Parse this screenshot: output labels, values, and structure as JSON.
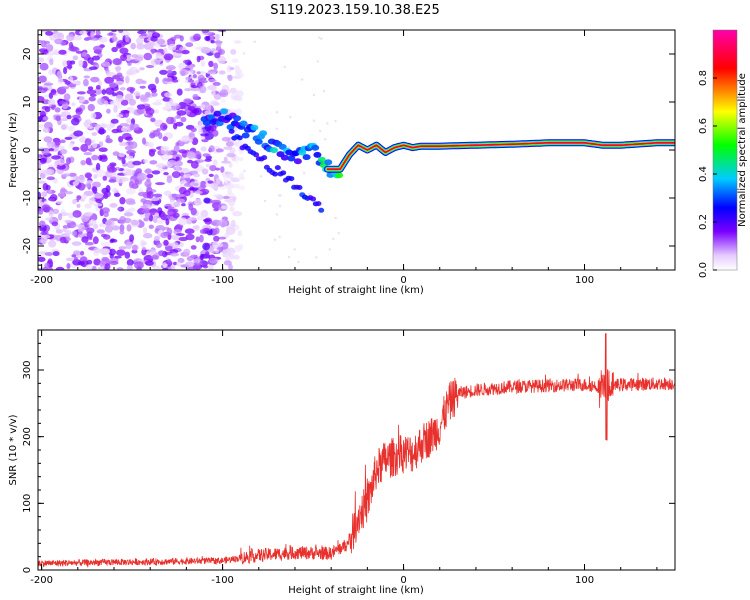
{
  "title": "S119.2023.159.10.38.E25",
  "chart_data": [
    {
      "type": "heatmap",
      "xlabel": "Height of straight line (km)",
      "ylabel": "Frequency (Hz)",
      "xlim": [
        -202,
        150
      ],
      "ylim": [
        -25,
        25
      ],
      "xticks": [
        -200,
        -100,
        0,
        100
      ],
      "yticks": [
        -20,
        -10,
        0,
        10,
        20
      ],
      "colorbar": {
        "label": "Normalized spectral amplitude",
        "range": [
          0,
          1
        ],
        "ticks": [
          "0.0",
          "0.2",
          "0.4",
          "0.6",
          "0.8"
        ],
        "colormap": [
          "#ffffff",
          "#e6ccff",
          "#7b00ff",
          "#0000ff",
          "#00ccff",
          "#00ff00",
          "#ffff00",
          "#ff0000",
          "#ff00aa"
        ]
      },
      "ridge": {
        "description_points_x": [
          -100,
          -90,
          -80,
          -70,
          -60,
          -50,
          -42,
          -35,
          -30,
          -25,
          -20,
          -15,
          -10,
          -5,
          0,
          5,
          10,
          20,
          40,
          60,
          80,
          100,
          110,
          120,
          140,
          150
        ],
        "frequency_hz": [
          7,
          5,
          3,
          0,
          -2,
          0,
          -4,
          -4,
          -1,
          1,
          0,
          1,
          -0.5,
          0.5,
          1,
          0.5,
          0.8,
          0.8,
          1,
          1.2,
          1.5,
          1.5,
          1,
          1,
          1.5,
          1.5
        ],
        "amplitude": [
          0.3,
          0.3,
          0.35,
          0.35,
          0.3,
          0.4,
          0.45,
          0.45,
          0.4,
          0.45,
          0.5,
          0.6,
          0.7,
          0.6,
          0.75,
          0.8,
          0.85,
          0.85,
          0.85,
          0.85,
          0.85,
          0.85,
          0.7,
          0.85,
          0.85,
          0.85
        ]
      },
      "noise_region_x": [
        -202,
        -95
      ]
    },
    {
      "type": "line",
      "xlabel": "Height of straight line (km)",
      "ylabel": "SNR (10 * v/v)",
      "xlim": [
        -202,
        150
      ],
      "ylim": [
        0,
        360
      ],
      "xticks": [
        -200,
        -100,
        0,
        100
      ],
      "yticks": [
        0,
        100,
        200,
        300
      ],
      "color": "#e8302c",
      "trend": {
        "x": [
          -202,
          -100,
          -80,
          -60,
          -40,
          -30,
          -25,
          -20,
          -15,
          -10,
          0,
          5,
          10,
          15,
          20,
          25,
          30,
          40,
          60,
          100,
          110,
          120,
          150
        ],
        "y": [
          10,
          14,
          22,
          26,
          25,
          40,
          80,
          100,
          150,
          165,
          175,
          175,
          190,
          200,
          215,
          250,
          265,
          270,
          275,
          278,
          275,
          278,
          280
        ]
      },
      "spike": {
        "x": 112,
        "max": 355,
        "min": 195
      }
    }
  ]
}
